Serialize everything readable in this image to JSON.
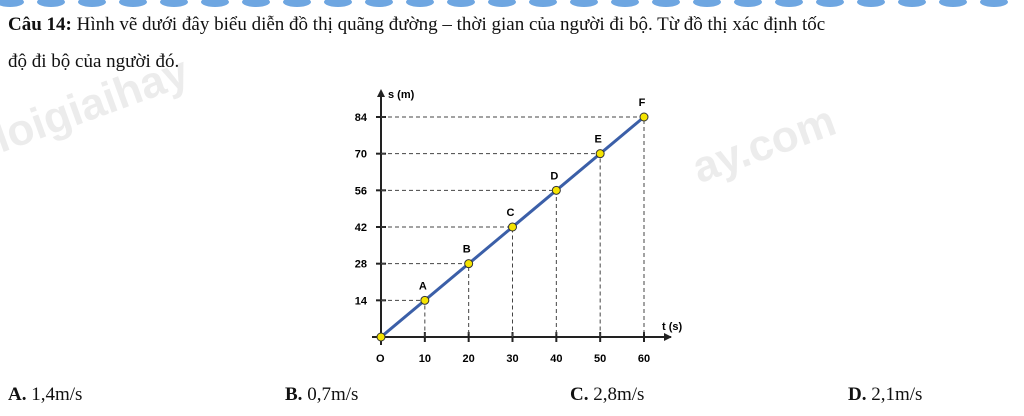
{
  "question": {
    "number": "Câu 14:",
    "text": " Hình vẽ dưới đây biểu diễn đồ thị quãng đường – thời gian của người đi bộ. Từ đồ thị xác định tốc",
    "text_line2": "độ đi bộ của người đó."
  },
  "options": [
    {
      "letter": "A.",
      "text": " 1,4m/s"
    },
    {
      "letter": "B.",
      "text": " 0,7m/s"
    },
    {
      "letter": "C.",
      "text": " 2,8m/s"
    },
    {
      "letter": "D.",
      "text": " 2,1m/s"
    }
  ],
  "watermark": [
    "vietjack / loigiaihay",
    "ay.com"
  ],
  "colors": {
    "line": "#3b5fa8",
    "point": "#f5e400",
    "border": "#4a90d9"
  },
  "chart_data": {
    "type": "line",
    "xlabel": "t (s)",
    "ylabel": "s (m)",
    "origin_label": "O",
    "xticks": [
      10,
      20,
      30,
      40,
      50,
      60
    ],
    "yticks": [
      14,
      28,
      42,
      56,
      70,
      84
    ],
    "xlim": [
      0,
      60
    ],
    "ylim": [
      0,
      84
    ],
    "grid": false,
    "points": [
      {
        "label": "",
        "x": 0,
        "y": 0
      },
      {
        "label": "A",
        "x": 10,
        "y": 14
      },
      {
        "label": "B",
        "x": 20,
        "y": 28
      },
      {
        "label": "C",
        "x": 30,
        "y": 42
      },
      {
        "label": "D",
        "x": 40,
        "y": 56
      },
      {
        "label": "E",
        "x": 50,
        "y": 70
      },
      {
        "label": "F",
        "x": 60,
        "y": 84
      }
    ]
  }
}
